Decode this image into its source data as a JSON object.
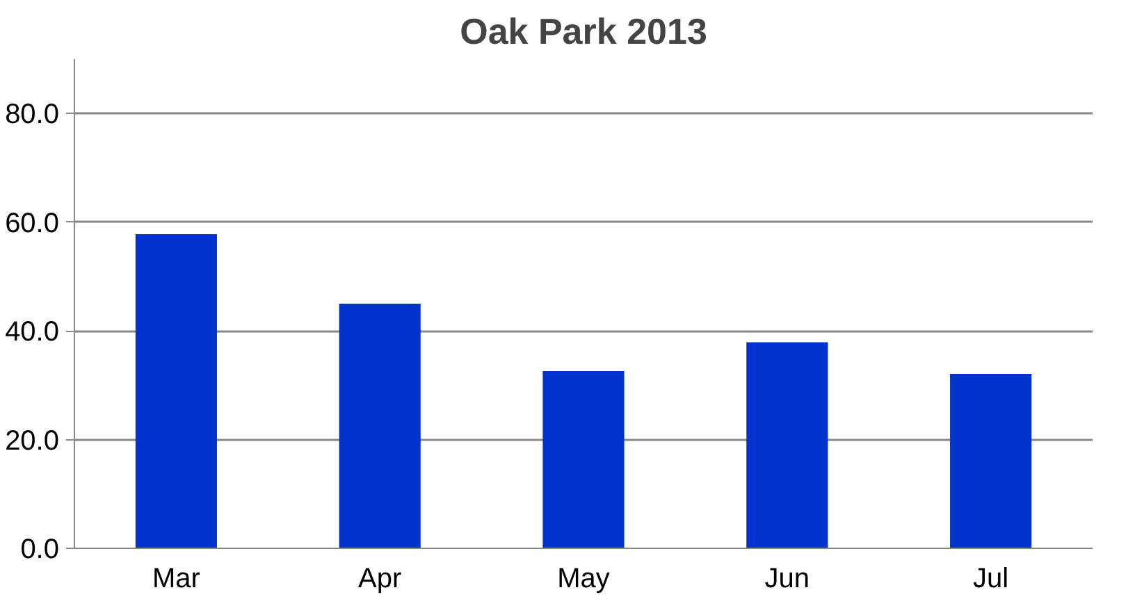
{
  "chart_data": {
    "type": "bar",
    "title": "Oak Park 2013",
    "categories": [
      "Mar",
      "Apr",
      "May",
      "Jun",
      "Jul"
    ],
    "values": [
      57.8,
      45.0,
      32.6,
      37.9,
      32.1
    ],
    "color": "#0033cc",
    "ylim": [
      0,
      90
    ],
    "yticks": [
      {
        "value": 0,
        "label": "0.0"
      },
      {
        "value": 20,
        "label": "20.0"
      },
      {
        "value": 40,
        "label": "40.0"
      },
      {
        "value": 60,
        "label": "60.0"
      },
      {
        "value": 80,
        "label": "80.0"
      }
    ],
    "grid": "y"
  }
}
